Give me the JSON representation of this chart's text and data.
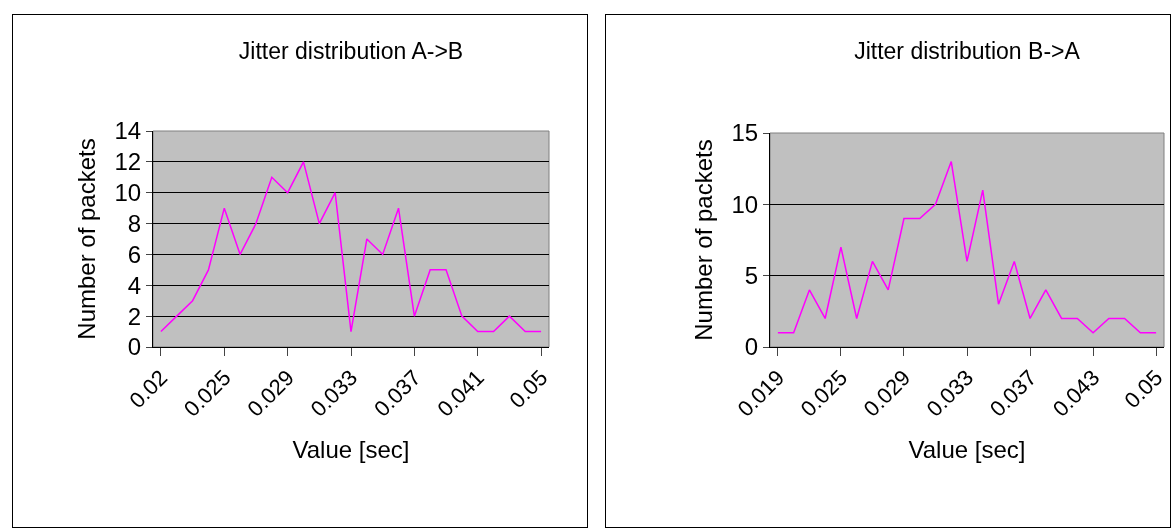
{
  "chart_data": [
    {
      "type": "line",
      "title": "Jitter distribution A->B",
      "xlabel": "Value [sec]",
      "ylabel": "Number of packets",
      "categories": [
        "0.02",
        null,
        null,
        null,
        "0.025",
        null,
        null,
        null,
        "0.029",
        null,
        null,
        null,
        "0.033",
        null,
        null,
        null,
        "0.037",
        null,
        null,
        null,
        "0.041",
        null,
        null,
        null,
        "0.05"
      ],
      "series": [
        {
          "color": "#ff00ff",
          "values": [
            1,
            2,
            3,
            5,
            9,
            6,
            8,
            11,
            10,
            12,
            8,
            10,
            1,
            7,
            6,
            9,
            2,
            5,
            5,
            2,
            1,
            1,
            2,
            1,
            1
          ]
        }
      ],
      "ylim": [
        0,
        14
      ],
      "yticks": [
        0,
        2,
        4,
        6,
        8,
        10,
        12,
        14
      ],
      "grid": "y"
    },
    {
      "type": "line",
      "title": "Jitter distribution B->A",
      "xlabel": "Value [sec]",
      "ylabel": "Number of packets",
      "categories": [
        "0.019",
        null,
        null,
        null,
        "0.025",
        null,
        null,
        null,
        "0.029",
        null,
        null,
        null,
        "0.033",
        null,
        null,
        null,
        "0.037",
        null,
        null,
        null,
        "0.043",
        null,
        null,
        null,
        "0.05"
      ],
      "series": [
        {
          "color": "#ff00ff",
          "values": [
            1,
            1,
            4,
            2,
            7,
            2,
            6,
            4,
            9,
            9,
            10,
            13,
            6,
            11,
            3,
            6,
            2,
            4,
            2,
            2,
            1,
            2,
            2,
            1,
            1
          ]
        }
      ],
      "ylim": [
        0,
        15
      ],
      "yticks": [
        0,
        5,
        10,
        15
      ],
      "grid": "y"
    }
  ]
}
